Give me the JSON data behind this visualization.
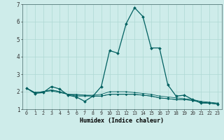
{
  "title": "",
  "xlabel": "Humidex (Indice chaleur)",
  "ylabel": "",
  "background_color": "#ceecea",
  "grid_color": "#add8d4",
  "line_color": "#006060",
  "xlim": [
    -0.5,
    23.5
  ],
  "ylim": [
    1,
    7
  ],
  "yticks": [
    1,
    2,
    3,
    4,
    5,
    6,
    7
  ],
  "xticks": [
    0,
    1,
    2,
    3,
    4,
    5,
    6,
    7,
    8,
    9,
    10,
    11,
    12,
    13,
    14,
    15,
    16,
    17,
    18,
    19,
    20,
    21,
    22,
    23
  ],
  "series": [
    [
      2.2,
      1.9,
      1.95,
      2.3,
      2.15,
      1.8,
      1.7,
      1.45,
      1.75,
      2.3,
      4.35,
      4.2,
      5.9,
      6.8,
      6.3,
      4.5,
      4.5,
      2.4,
      1.75,
      1.8,
      1.55,
      1.35,
      1.35,
      1.3
    ],
    [
      2.2,
      1.95,
      2.0,
      2.1,
      2.0,
      1.85,
      1.85,
      1.8,
      1.8,
      1.85,
      2.0,
      2.0,
      2.0,
      1.95,
      1.9,
      1.85,
      1.75,
      1.7,
      1.65,
      1.6,
      1.55,
      1.45,
      1.4,
      1.35
    ],
    [
      2.2,
      1.95,
      2.0,
      2.1,
      2.0,
      1.85,
      1.75,
      1.75,
      1.75,
      1.75,
      1.85,
      1.85,
      1.85,
      1.85,
      1.8,
      1.75,
      1.65,
      1.6,
      1.55,
      1.55,
      1.5,
      1.4,
      1.35,
      1.3
    ],
    [
      2.2,
      1.95,
      2.0,
      2.05,
      1.95,
      1.85,
      1.8,
      1.8,
      1.75,
      1.75,
      1.85,
      1.85,
      1.85,
      1.85,
      1.8,
      1.75,
      1.65,
      1.6,
      1.55,
      1.55,
      1.5,
      1.4,
      1.35,
      1.3
    ]
  ]
}
